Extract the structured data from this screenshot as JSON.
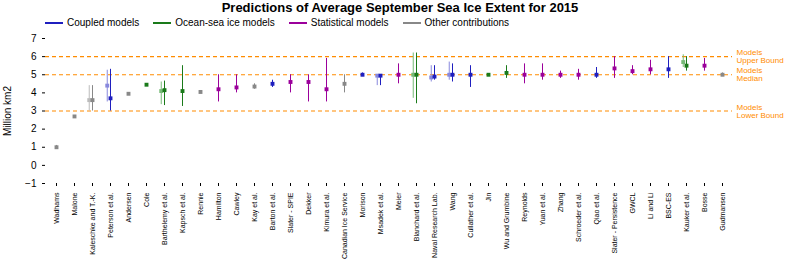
{
  "chart_data": {
    "type": "errorbar",
    "title": "Predictions of Average September Sea Ice Extent for 2015",
    "ylabel": "Million km2",
    "categories": [
      "Wadhams",
      "Malone",
      "Kaleschke and T.-K.",
      "Peterson et al.",
      "Andersen",
      "Cole",
      "Barthelemy et al.",
      "Kapsch et al.",
      "Rennie",
      "Hamilton",
      "Cawley",
      "Kay et al.",
      "Barton et al.",
      "Slater - SPIE",
      "Dekker",
      "Kimura et al.",
      "Canadian Ice Service",
      "Morison",
      "Msadek et al.",
      "Meier",
      "Blanchard et al.",
      "Naval Research Lab.",
      "Wang",
      "Cullather et al.",
      "Jin",
      "Wu and Grumbine",
      "Reynolds",
      "Yuan et al.",
      "Zhang",
      "Schroeder et al.",
      "Qiao et al.",
      "Slater - Persistence",
      "GWCL",
      "Li and Li",
      "BSC-ES",
      "Kauker et al.",
      "Bosse",
      "Gudmansen"
    ],
    "values": [
      1.0,
      2.7,
      3.6,
      3.7,
      3.95,
      4.45,
      4.15,
      4.1,
      4.05,
      4.2,
      4.3,
      4.35,
      4.5,
      4.6,
      4.6,
      4.2,
      4.5,
      5.0,
      4.95,
      5.0,
      5.0,
      4.9,
      5.0,
      5.0,
      5.0,
      5.1,
      5.0,
      5.0,
      5.0,
      5.0,
      5.0,
      5.35,
      5.2,
      5.3,
      5.3,
      5.5,
      5.5,
      5.0
    ],
    "error_low": [
      0.9,
      2.65,
      3.0,
      3.0,
      3.9,
      4.45,
      3.3,
      3.25,
      4.0,
      3.5,
      4.0,
      4.2,
      4.3,
      4.0,
      3.5,
      3.5,
      4.0,
      4.9,
      4.4,
      4.5,
      3.4,
      4.7,
      4.6,
      4.3,
      5.0,
      4.8,
      4.5,
      4.7,
      4.8,
      4.7,
      4.8,
      4.8,
      5.0,
      5.0,
      4.8,
      5.2,
      5.2,
      4.9
    ],
    "error_high": [
      1.1,
      2.75,
      4.4,
      5.3,
      4.0,
      4.45,
      4.65,
      5.5,
      4.1,
      5.0,
      5.0,
      4.5,
      4.7,
      5.0,
      5.0,
      5.9,
      5.0,
      5.1,
      5.0,
      5.6,
      6.2,
      5.5,
      5.6,
      5.5,
      5.0,
      5.5,
      5.6,
      5.6,
      5.2,
      5.3,
      5.4,
      6.0,
      5.5,
      5.8,
      6.0,
      6.0,
      5.9,
      5.1
    ],
    "colors": [
      "#888888",
      "#888888",
      "#888888",
      "#1f1fbf",
      "#888888",
      "#1a7a1a",
      "#1a7a1a",
      "#1a7a1a",
      "#888888",
      "#9b009b",
      "#9b009b",
      "#888888",
      "#1f1fbf",
      "#9b009b",
      "#9b009b",
      "#9b009b",
      "#888888",
      "#1f1fbf",
      "#1f1fbf",
      "#9b009b",
      "#1a7a1a",
      "#1f1fbf",
      "#1f1fbf",
      "#1f1fbf",
      "#1a7a1a",
      "#1a7a1a",
      "#9b009b",
      "#9b009b",
      "#9b009b",
      "#9b009b",
      "#1f1fbf",
      "#9b009b",
      "#9b009b",
      "#9b009b",
      "#1f1fbf",
      "#1a7a1a",
      "#9b009b",
      "#888888"
    ],
    "july": {
      "values": [
        null,
        null,
        3.6,
        4.4,
        null,
        null,
        4.1,
        null,
        null,
        null,
        null,
        null,
        null,
        null,
        null,
        null,
        null,
        null,
        4.95,
        null,
        5.0,
        4.85,
        5.0,
        null,
        null,
        null,
        null,
        null,
        null,
        null,
        null,
        null,
        null,
        null,
        null,
        5.7,
        null,
        null
      ],
      "error_low": [
        null,
        null,
        3.0,
        3.5,
        null,
        null,
        3.35,
        null,
        null,
        null,
        null,
        null,
        null,
        null,
        null,
        null,
        null,
        null,
        4.4,
        null,
        3.7,
        4.6,
        4.7,
        null,
        null,
        null,
        null,
        null,
        null,
        null,
        null,
        null,
        null,
        null,
        null,
        5.4,
        null,
        null
      ],
      "error_high": [
        null,
        null,
        4.4,
        5.25,
        null,
        null,
        4.6,
        null,
        null,
        null,
        null,
        null,
        null,
        null,
        null,
        null,
        null,
        null,
        5.0,
        null,
        6.2,
        5.5,
        5.7,
        null,
        null,
        null,
        null,
        null,
        null,
        null,
        null,
        null,
        null,
        null,
        null,
        6.1,
        null,
        null
      ],
      "colors": [
        null,
        null,
        "#bbbbbb",
        "#8888dd",
        null,
        null,
        "#77bb77",
        null,
        null,
        null,
        null,
        null,
        null,
        null,
        null,
        null,
        null,
        null,
        "#8888dd",
        null,
        "#77bb77",
        "#8888dd",
        "#8888dd",
        null,
        null,
        null,
        null,
        null,
        null,
        null,
        null,
        null,
        null,
        null,
        null,
        "#77bb77",
        null,
        null
      ]
    },
    "marker": "square",
    "hlines": [
      {
        "value": 3.0,
        "label": "Models\nLower Bound",
        "color": "#FF8C00",
        "line_style": "dashed"
      },
      {
        "value": 5.0,
        "label": "Models\nMedian",
        "color": "#FF8C00",
        "line_style": "dashed"
      },
      {
        "value": 6.0,
        "label": "Models\nUpper Bound",
        "color": "#FF8C00",
        "line_style": "dashed"
      }
    ],
    "legend": "upper left",
    "legend_items": [
      {
        "name": "Coupled models",
        "color": "#1f1fbf"
      },
      {
        "name": "Ocean-sea ice models",
        "color": "#1a7a1a"
      },
      {
        "name": "Statistical models",
        "color": "#9b009b"
      },
      {
        "name": "Other contributions",
        "color": "#888888"
      }
    ],
    "ylim": [
      -1,
      7
    ],
    "yticks": [
      -1,
      0,
      1,
      2,
      3,
      4,
      5,
      6,
      7
    ],
    "grid": false
  }
}
